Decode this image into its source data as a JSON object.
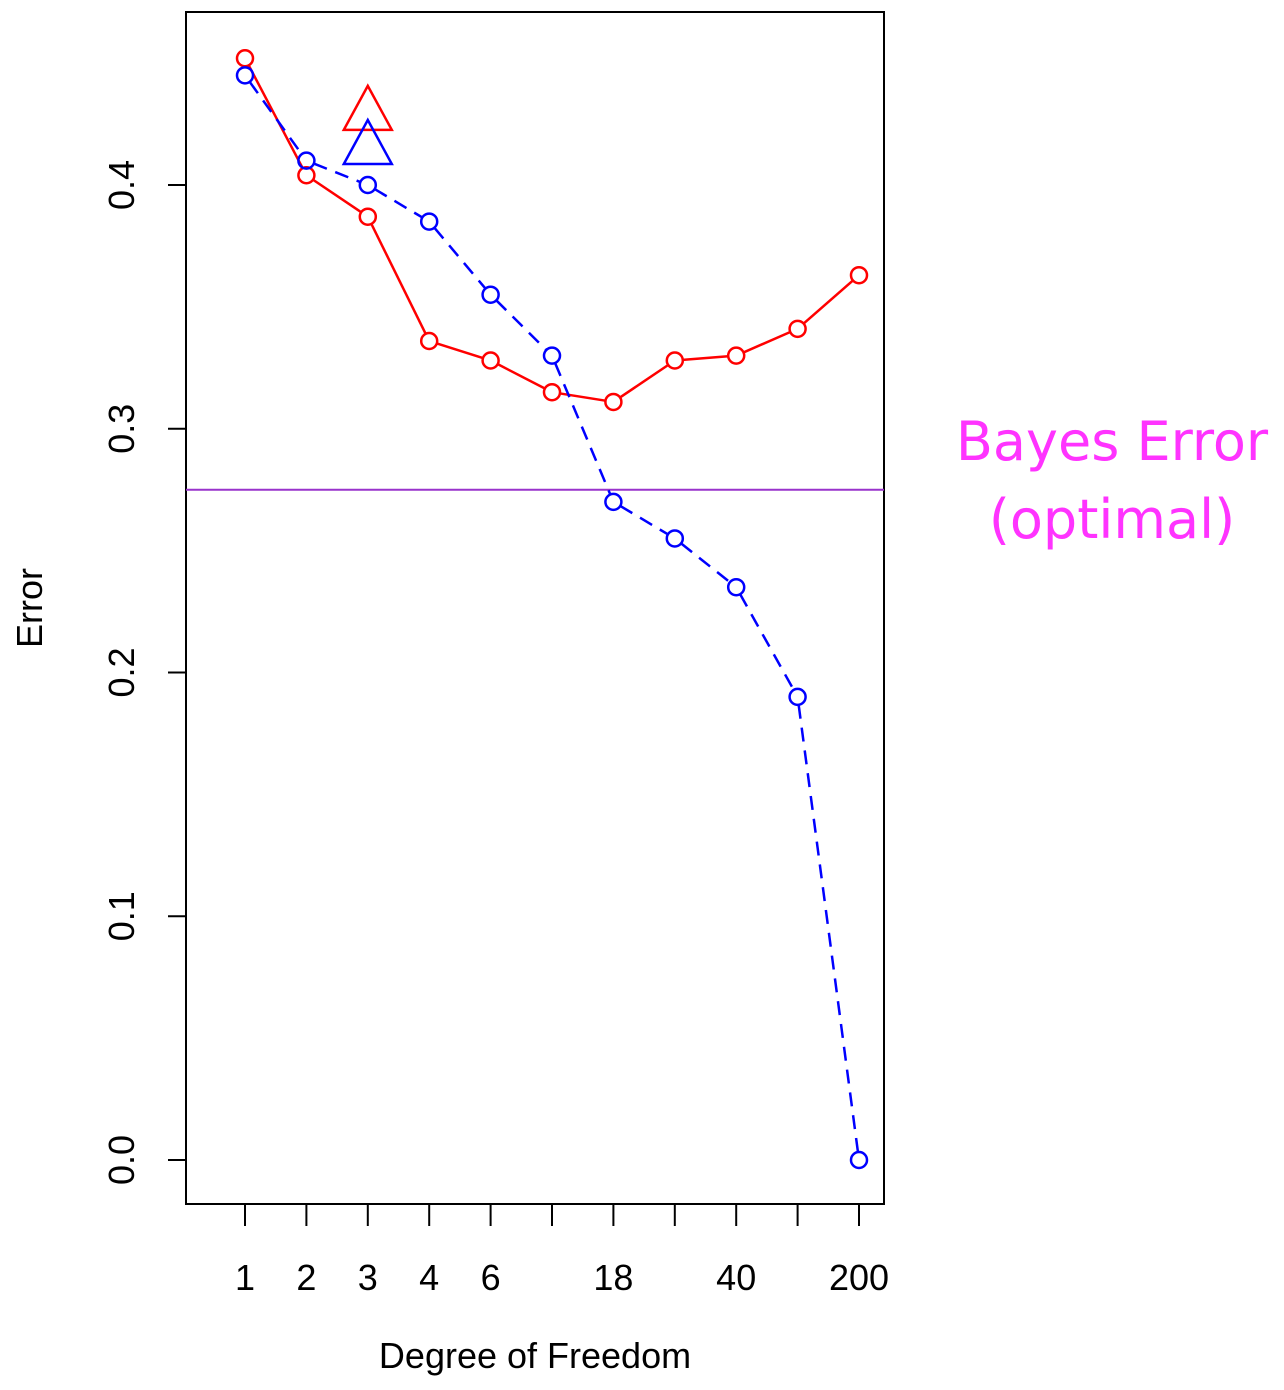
{
  "chart_data": {
    "type": "line",
    "title": "",
    "xlabel": "Degree of Freedom",
    "ylabel": "Error",
    "ylim": [
      0.0,
      0.45
    ],
    "y_ticks": [
      "0.0",
      "0.1",
      "0.2",
      "0.3",
      "0.4"
    ],
    "x_tick_positions": [
      1,
      2,
      3,
      4,
      5,
      6,
      7,
      8,
      9,
      10,
      11
    ],
    "x_tick_labels": [
      "1",
      "2",
      "3",
      "4",
      "6",
      "",
      "18",
      "",
      "40",
      "",
      "200"
    ],
    "grid": false,
    "series": [
      {
        "color": "#ff0000",
        "line_style": "solid",
        "marker": "open-circle",
        "x": [
          1,
          2,
          3,
          4,
          5,
          6,
          7,
          8,
          9,
          10,
          11
        ],
        "values": [
          0.452,
          0.404,
          0.387,
          0.336,
          0.328,
          0.315,
          0.311,
          0.328,
          0.33,
          0.341,
          0.363
        ]
      },
      {
        "color": "#0000ff",
        "line_style": "dashed",
        "marker": "open-circle",
        "x": [
          1,
          2,
          3,
          4,
          5,
          6,
          7,
          8,
          9,
          10,
          11
        ],
        "values": [
          0.445,
          0.41,
          0.4,
          0.385,
          0.355,
          0.33,
          0.27,
          0.255,
          0.235,
          0.19,
          0.0
        ]
      }
    ],
    "extra_points": [
      {
        "color": "#ff0000",
        "marker": "open-triangle",
        "x": 3,
        "y": 0.43
      },
      {
        "color": "#0000ff",
        "marker": "open-triangle",
        "x": 3,
        "y": 0.416
      }
    ],
    "reference_line": {
      "orientation": "horizontal",
      "y": 0.275,
      "color": "#9933cc"
    },
    "annotation": {
      "lines": [
        "Bayes Error",
        "(optimal)"
      ],
      "color": "#ff33ff"
    }
  }
}
